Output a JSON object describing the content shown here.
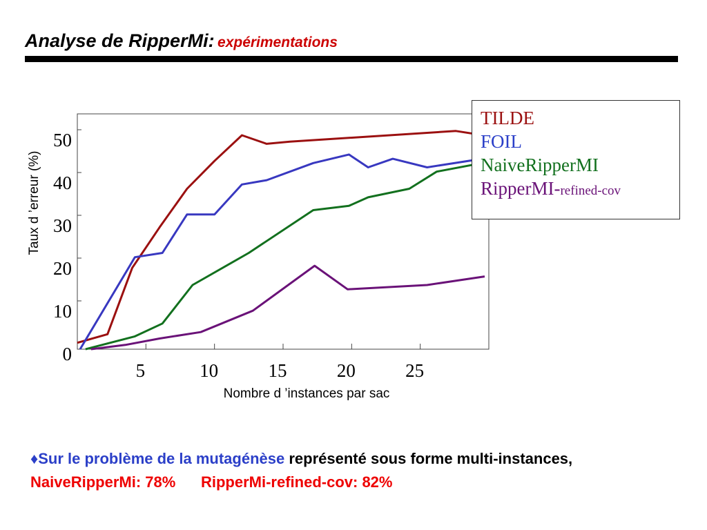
{
  "title": {
    "main": "Analyse de RipperMi:",
    "sub": "expérimentations"
  },
  "colors": {
    "title_sub": "#cc0000",
    "rule": "#000000",
    "bullet_blue": "#2b3fc8",
    "bullet_red": "#ee0000"
  },
  "chart_data": {
    "type": "line",
    "xlabel": "Nombre d ’instances par sac",
    "ylabel": "Taux d ’erreur (%)",
    "x_ticks": [
      "5",
      "10",
      "15",
      "20",
      "25"
    ],
    "y_ticks": [
      "0",
      "10",
      "20",
      "30",
      "40",
      "50"
    ],
    "xlim": [
      0,
      30
    ],
    "ylim": [
      0,
      55
    ],
    "grid": false,
    "legend_position": "top-right",
    "series": [
      {
        "name": "TILDE",
        "color": "#9b1010",
        "x": [
          0,
          2.2,
          4,
          6,
          8,
          10,
          12,
          13.8,
          15.5,
          27.6,
          29.6
        ],
        "y": [
          1.5,
          3.5,
          19,
          28.5,
          37.5,
          44,
          50,
          48,
          48.5,
          51,
          50
        ]
      },
      {
        "name": "FOIL",
        "color": "#3838c0",
        "x": [
          0.2,
          4.2,
          6.2,
          8,
          10,
          12,
          13.8,
          17.2,
          19.8,
          21.2,
          23,
          25.5,
          29.5
        ],
        "y": [
          0,
          21.5,
          22.5,
          31.5,
          31.5,
          38.5,
          39.5,
          43.5,
          45.5,
          42.5,
          44.5,
          42.5,
          44.5
        ]
      },
      {
        "name": "NaiveRipperMI",
        "color": "#12701e",
        "x": [
          0.6,
          4.2,
          6.2,
          8.4,
          12.5,
          17.2,
          19.8,
          21.2,
          24.2,
          26.2,
          29.5
        ],
        "y": [
          0,
          3,
          6,
          15,
          22.5,
          32.5,
          33.5,
          35.5,
          37.5,
          41.5,
          43.5
        ]
      },
      {
        "name": "RipperMI-refined-cov",
        "color": "#6a1278",
        "x": [
          1,
          3.5,
          6,
          9,
          12.8,
          17.3,
          19.7,
          25.5,
          29.7
        ],
        "y": [
          0,
          1,
          2.5,
          4,
          9,
          19.5,
          14,
          15,
          17
        ]
      }
    ]
  },
  "legend": {
    "items": [
      {
        "label": "TILDE",
        "color": "#9b1010"
      },
      {
        "label": "FOIL",
        "color": "#2b3fc8"
      },
      {
        "label": "NaiveRipperMI",
        "color": "#12701e"
      },
      {
        "label": "RipperMI-",
        "suffix": "refined-cov",
        "color": "#6a1278"
      }
    ]
  },
  "bullet": {
    "diamond": "♦",
    "blue_text": "Sur le problème de la mutagénèse",
    "black_text": " représenté sous forme multi-instances, ",
    "red_1": "NaiveRipperMi: 78%",
    "red_2": "RipperMi-refined-cov: 82%"
  }
}
